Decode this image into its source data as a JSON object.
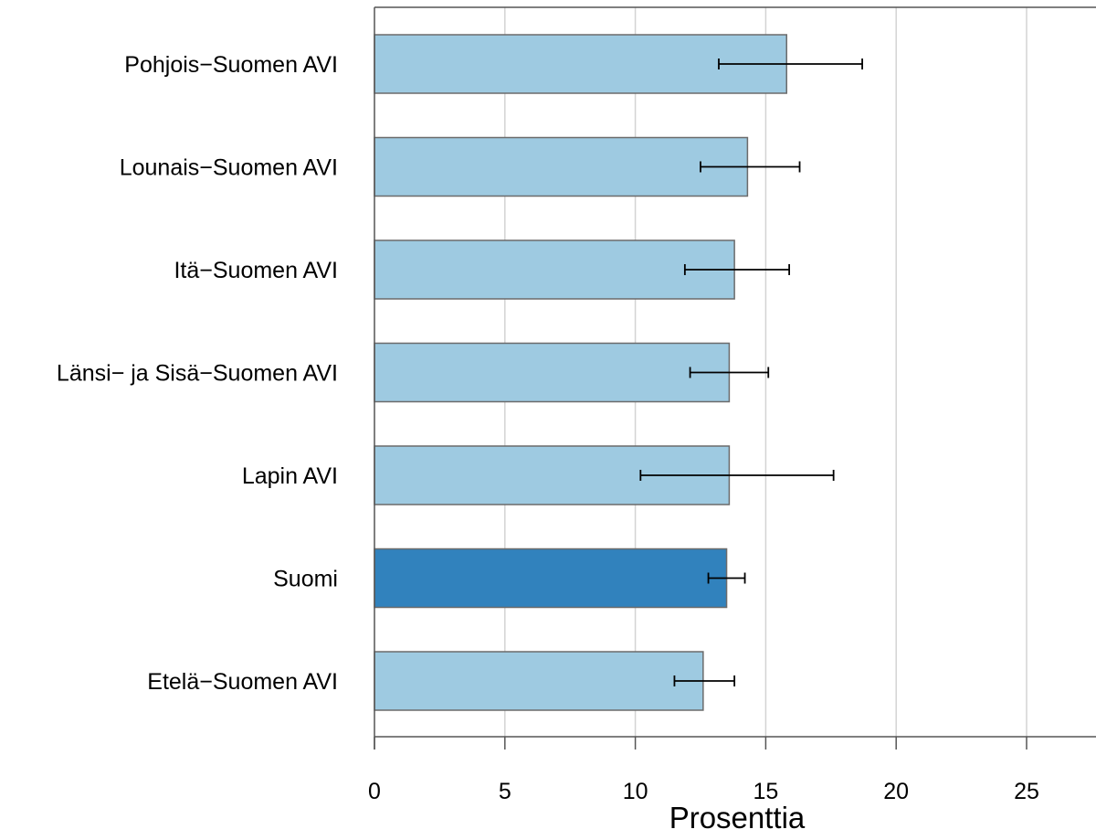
{
  "chart_data": {
    "type": "bar",
    "orientation": "horizontal",
    "title": "",
    "xlabel": "Prosenttia",
    "ylabel": "",
    "xlim": [
      0,
      28
    ],
    "xticks": [
      0,
      5,
      10,
      15,
      20,
      25
    ],
    "grid": "vertical",
    "legend": "none",
    "colors": {
      "regular": "#9ecae1",
      "highlight": "#3182bd",
      "border": "#6b6b6b",
      "grid": "#d3d3d3",
      "axis": "#555555",
      "error": "#000000"
    },
    "categories": [
      "Pohjois−Suomen AVI",
      "Lounais−Suomen AVI",
      "Itä−Suomen AVI",
      "Länsi− ja Sisä−Suomen AVI",
      "Lapin AVI",
      "Suomi",
      "Etelä−Suomen AVI"
    ],
    "values": [
      15.8,
      14.3,
      13.8,
      13.6,
      13.6,
      13.5,
      12.6
    ],
    "error_low": [
      13.2,
      12.5,
      11.9,
      12.1,
      10.2,
      12.8,
      11.5
    ],
    "error_high": [
      18.7,
      16.3,
      15.9,
      15.1,
      17.6,
      14.2,
      13.8
    ],
    "highlight": [
      "Suomi"
    ]
  }
}
